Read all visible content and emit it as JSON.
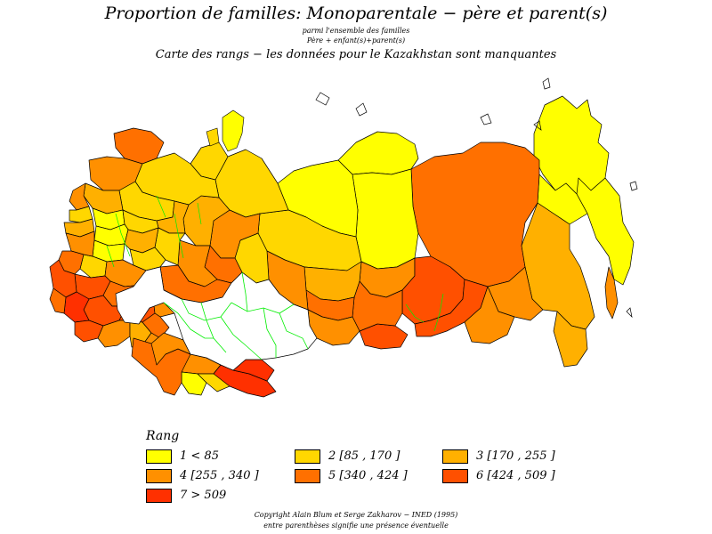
{
  "title": "Proportion de familles: Monoparentale  −  père et parent(s)",
  "subtitle_line1": "parmi l'ensemble des familles",
  "subtitle_line2": "Père +  enfant(s)+parent(s)",
  "subtitle_line3": "Carte des rangs  −  les données pour le Kazakhstan sont manquantes",
  "colors": {
    "rank1": "#ffff00",
    "rank2": "#ffd700",
    "rank3": "#ffb000",
    "rank4": "#ff9000",
    "rank5": "#ff7000",
    "rank6": "#ff5000",
    "rank7": "#ff3000",
    "no_data": "#ffffff",
    "boundaries": "#000000",
    "kazakhstan_internal_boundaries": "#00ee00"
  },
  "legend": {
    "title": "Rang",
    "items": [
      {
        "label": "1  <  85",
        "color": "#ffff00"
      },
      {
        "label": "2  [85  ,  170  ]",
        "color": "#ffd700"
      },
      {
        "label": "3  [170  ,  255  ]",
        "color": "#ffb000"
      },
      {
        "label": "4  [255  ,  340  ]",
        "color": "#ff9000"
      },
      {
        "label": "5  [340  ,  424  ]",
        "color": "#ff7000"
      },
      {
        "label": "6  [424  ,  509  ]",
        "color": "#ff5000"
      },
      {
        "label": "7  >  509",
        "color": "#ff3000"
      }
    ]
  },
  "footer_line1": "Copyright  Alain  Blum  et  Serge  Zakharov  −  INED  (1995)",
  "footer_line2": "entre parenthèses signifie une présence éventuelle"
}
